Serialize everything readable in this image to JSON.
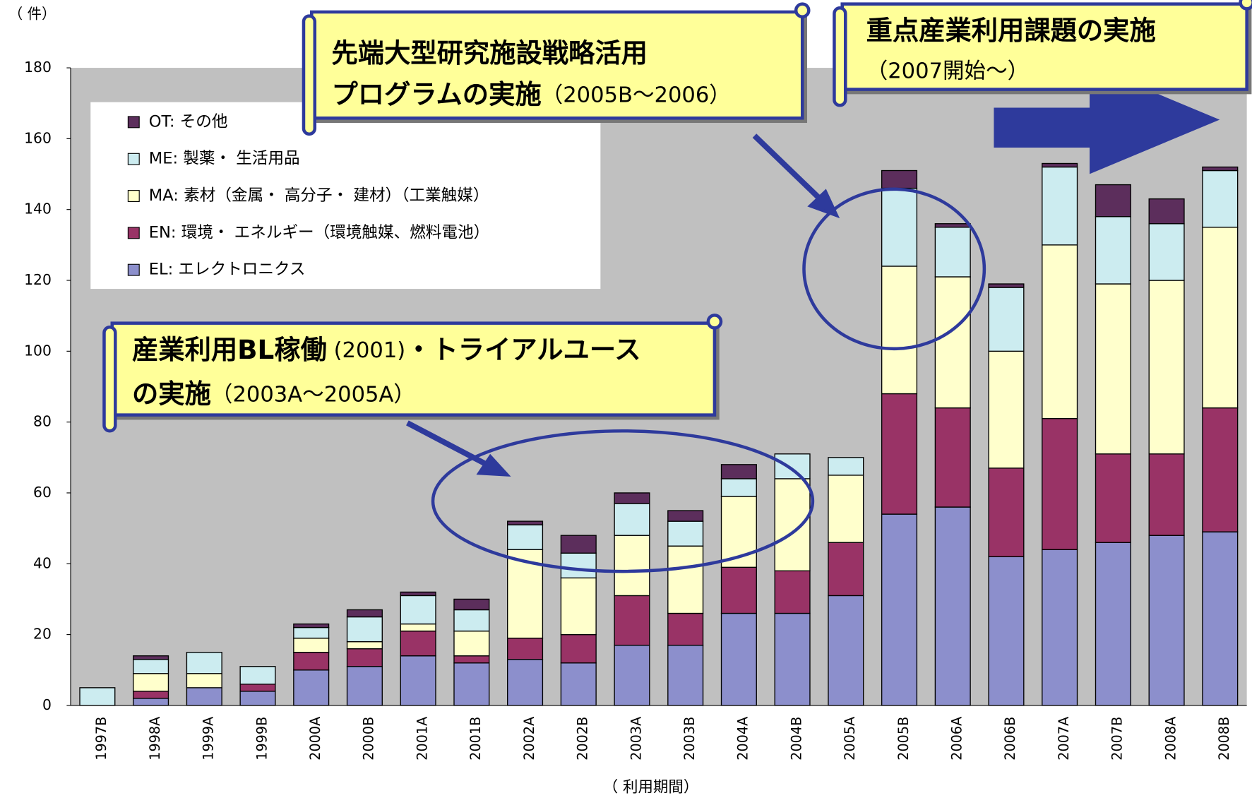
{
  "chart_data": {
    "type": "bar",
    "stacked": true,
    "y_unit_label": "（ 件）",
    "xlabel": "（ 利用期間）",
    "plot_background": "#c0c0c0",
    "categories": [
      "1997B",
      "1998A",
      "1999A",
      "1999B",
      "2000A",
      "2000B",
      "2001A",
      "2001B",
      "2002A",
      "2002B",
      "2003A",
      "2003B",
      "2004A",
      "2004B",
      "2005A",
      "2005B",
      "2006A",
      "2006B",
      "2007A",
      "2007B",
      "2008A",
      "2008B"
    ],
    "series": [
      {
        "name": "EL: エレクトロニクス",
        "color": "#8c8fcc",
        "values": [
          0,
          2,
          5,
          4,
          10,
          11,
          14,
          12,
          13,
          12,
          17,
          17,
          26,
          26,
          31,
          54,
          56,
          42,
          44,
          46,
          48,
          49
        ]
      },
      {
        "name": "EN: 環境・ エネルギー（環境触媒、燃料電池）",
        "color": "#993366",
        "values": [
          0,
          2,
          0,
          2,
          5,
          5,
          7,
          2,
          6,
          8,
          14,
          9,
          13,
          12,
          15,
          34,
          28,
          25,
          37,
          25,
          23,
          35
        ]
      },
      {
        "name": "MA: 素材（金属・ 高分子・ 建材）（工業触媒）",
        "color": "#ffffcc",
        "values": [
          0,
          5,
          4,
          0,
          4,
          2,
          2,
          7,
          25,
          16,
          17,
          19,
          20,
          26,
          19,
          36,
          37,
          33,
          49,
          48,
          49,
          51
        ]
      },
      {
        "name": "ME: 製薬・ 生活用品",
        "color": "#ccecf0",
        "values": [
          5,
          4,
          6,
          5,
          3,
          7,
          8,
          6,
          7,
          7,
          9,
          7,
          5,
          7,
          5,
          22,
          14,
          18,
          22,
          19,
          16,
          16
        ]
      },
      {
        "name": "OT: その他",
        "color": "#5c2e5c",
        "values": [
          0,
          1,
          0,
          0,
          1,
          2,
          1,
          3,
          1,
          5,
          3,
          3,
          4,
          0,
          0,
          5,
          1,
          1,
          1,
          9,
          7,
          1
        ]
      }
    ],
    "ylim": [
      0,
      180
    ],
    "yticks": [
      0,
      20,
      40,
      60,
      80,
      100,
      120,
      140,
      160,
      180
    ],
    "legend_position": "upper left",
    "annotations": [
      {
        "lines": [
          [
            {
              "text": "産業利用BL稼働",
              "bold": true
            },
            {
              "text": " (2001)",
              "bold": false
            },
            {
              "text": "・トライアルユース",
              "bold": true
            }
          ],
          [
            {
              "text": "の実施",
              "bold": true
            },
            {
              "text": "（2003A～2005A）",
              "bold": false
            }
          ]
        ]
      },
      {
        "lines": [
          [
            {
              "text": "先端大型研究施設戦略活用",
              "bold": true
            }
          ],
          [
            {
              "text": "プログラムの実施",
              "bold": true
            },
            {
              "text": "（2005B～2006）",
              "bold": false
            }
          ]
        ]
      },
      {
        "lines": [
          [
            {
              "text": "重点産業利用課題の実施",
              "bold": true
            }
          ],
          [
            {
              "text": "（2007開始～）",
              "bold": false
            }
          ]
        ]
      }
    ]
  }
}
